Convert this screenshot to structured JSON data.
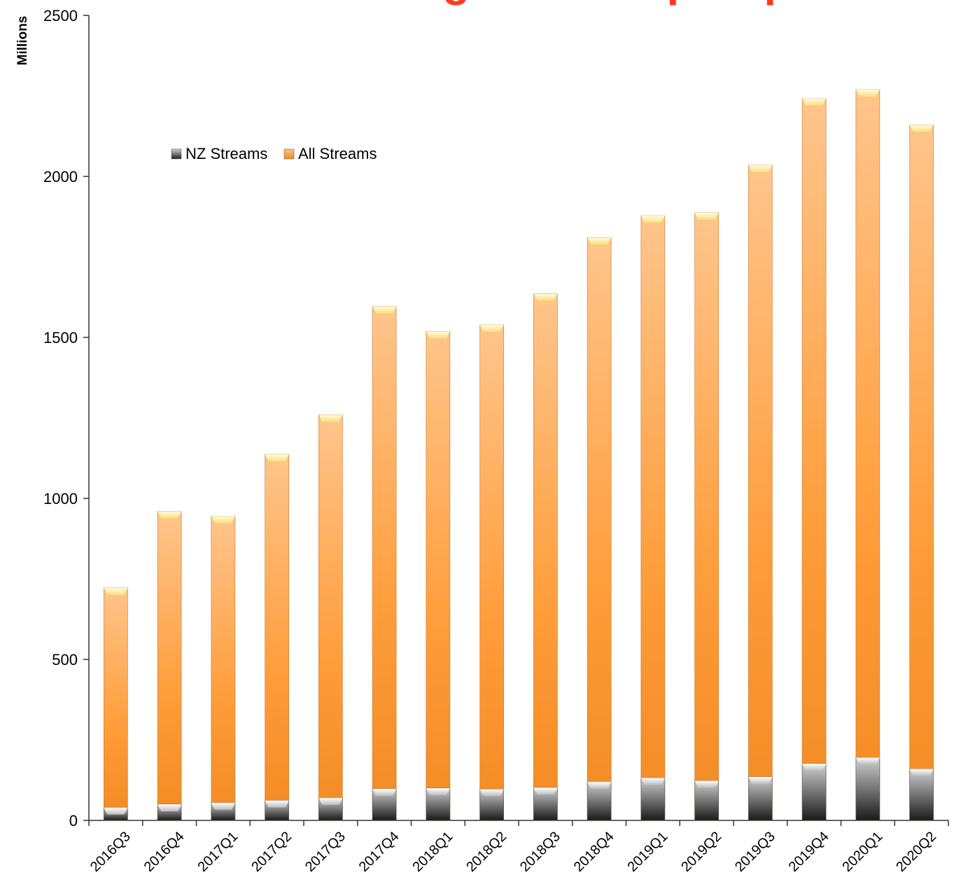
{
  "colors": {
    "title": "#ff3b1a",
    "nz_dark": "#1a1a1a",
    "nz_light": "#cfcfcf",
    "all_light": "#ffc58c",
    "all_mid": "#ff9d3a",
    "all_dark": "#f28a22",
    "cap": "#fff3a8",
    "axis": "#333333"
  },
  "chart_data": {
    "type": "bar",
    "stacked": false,
    "overlapped": true,
    "title": "Total streaming streams per quarter",
    "xlabel": "",
    "ylabel": "Millions",
    "ylim": [
      0,
      2500
    ],
    "yticks": [
      0,
      500,
      1000,
      1500,
      2000,
      2500
    ],
    "grid": false,
    "legend_position": "upper-left",
    "categories": [
      "2016Q3",
      "2016Q4",
      "2017Q1",
      "2017Q2",
      "2017Q3",
      "2017Q4",
      "2018Q1",
      "2018Q2",
      "2018Q3",
      "2018Q4",
      "2019Q1",
      "2019Q2",
      "2019Q3",
      "2019Q4",
      "2020Q1",
      "2020Q2"
    ],
    "series": [
      {
        "name": "NZ Streams",
        "values": [
          40,
          50,
          55,
          62,
          70,
          98,
          100,
          97,
          102,
          120,
          132,
          123,
          135,
          176,
          195,
          160
        ]
      },
      {
        "name": "All Streams",
        "values": [
          722,
          960,
          945,
          1137,
          1260,
          1596,
          1519,
          1539,
          1636,
          1810,
          1878,
          1887,
          2035,
          2242,
          2270,
          2160
        ]
      }
    ]
  }
}
